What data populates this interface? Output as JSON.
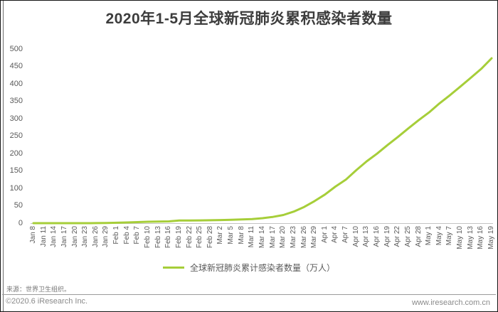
{
  "page": {
    "title": "2020年1-5月全球新冠肺炎累积感染者数量",
    "footer": {
      "source": "来源：世界卫生组织。",
      "copyright": "©2020.6 iResearch Inc.",
      "website": "www.iresearch.com.cn"
    }
  },
  "chart_data": {
    "type": "line",
    "title": "2020年1-5月全球新冠肺炎累积感染者数量",
    "legend": "全球新冠肺炎累计感染者数量（万人）",
    "legend_position": "bottom",
    "grid": false,
    "line_color": "#a6ce39",
    "axis_line_color": "#c4c4c4",
    "ylabel": "",
    "xlabel": "",
    "ylim": [
      0,
      500
    ],
    "y_ticks": [
      500,
      450,
      400,
      350,
      300,
      250,
      200,
      150,
      100,
      50,
      0
    ],
    "categories": [
      "Jan 8",
      "Jan 11",
      "Jan 14",
      "Jan 17",
      "Jan 20",
      "Jan 23",
      "Jan 26",
      "Jan 29",
      "Feb 1",
      "Feb 4",
      "Feb 7",
      "Feb 10",
      "Feb 13",
      "Feb 16",
      "Feb 19",
      "Feb 22",
      "Feb 25",
      "Feb 28",
      "Mar 2",
      "Mar 5",
      "Mar 8",
      "Mar 11",
      "Mar 14",
      "Mar 17",
      "Mar 20",
      "Mar 23",
      "Mar 26",
      "Mar 29",
      "Apr 1",
      "Apr 4",
      "Apr 7",
      "Apr 10",
      "Apr 13",
      "Apr 16",
      "Apr 19",
      "Apr 22",
      "Apr 25",
      "Apr 28",
      "May 1",
      "May 4",
      "May 7",
      "May 10",
      "May 13",
      "May 16",
      "May 19"
    ],
    "values": [
      0.0,
      0.0,
      0.0,
      0.1,
      0.1,
      0.1,
      0.2,
      0.6,
      1.2,
      2.1,
      3.1,
      4.1,
      4.7,
      5.2,
      7.6,
      7.8,
      8.0,
      8.4,
      8.9,
      9.7,
      10.6,
      11.9,
      14.3,
      18.0,
      23.4,
      33.2,
      46.6,
      63.4,
      82.3,
      105.2,
      125.0,
      152.1,
      177.6,
      199.5,
      224.1,
      247.5,
      272.0,
      295.7,
      318.1,
      344.0,
      367.6,
      392.2,
      417.4,
      443.0,
      473.5
    ]
  }
}
